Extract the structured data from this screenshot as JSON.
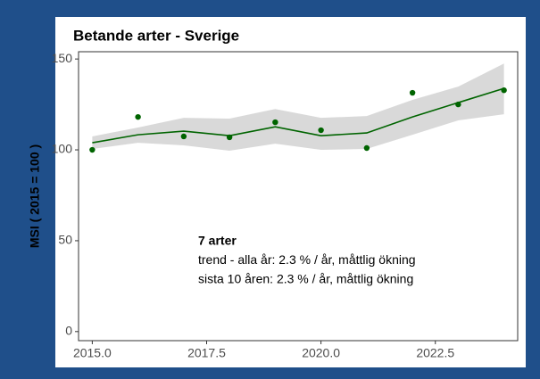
{
  "chart_data": {
    "type": "line",
    "title": "Betande arter - Sverige",
    "y_label": "MSI ( 2015 = 100 )",
    "x": [
      2015,
      2016,
      2017,
      2018,
      2019,
      2020,
      2021,
      2022,
      2023,
      2024
    ],
    "points": {
      "color": "#006400",
      "values": [
        100,
        118.1,
        107.4,
        106.9,
        115.2,
        110.8,
        101,
        131.4,
        125,
        132.8
      ]
    },
    "trend": {
      "color": "#006400",
      "values": [
        103.9,
        108.3,
        110.3,
        107.8,
        112.7,
        107.8,
        109.3,
        118.1,
        126,
        133.8
      ]
    },
    "band": {
      "color": "#d9d9d9",
      "upper": [
        107.4,
        112.3,
        117.6,
        117.2,
        122.5,
        117.6,
        118.6,
        127.5,
        134.8,
        147.5
      ],
      "lower": [
        100.5,
        103.9,
        102.5,
        99.5,
        103.4,
        100,
        100.5,
        108.3,
        116.2,
        119.6
      ]
    },
    "xlim": [
      2014.7,
      2024.3
    ],
    "ylim": [
      -5,
      154
    ],
    "xticks": [
      {
        "value": 2015,
        "label": "2015.0"
      },
      {
        "value": 2017.5,
        "label": "2017.5"
      },
      {
        "value": 2020,
        "label": "2020.0"
      },
      {
        "value": 2022.5,
        "label": "2022.5"
      }
    ],
    "yticks": [
      0,
      50,
      100,
      150
    ],
    "grid": false,
    "annotations": [
      "7 arter",
      "trend - alla år: 2.3 % / år, måttlig ökning",
      "sista 10 åren: 2.3 % / år, måttlig ökning"
    ]
  }
}
